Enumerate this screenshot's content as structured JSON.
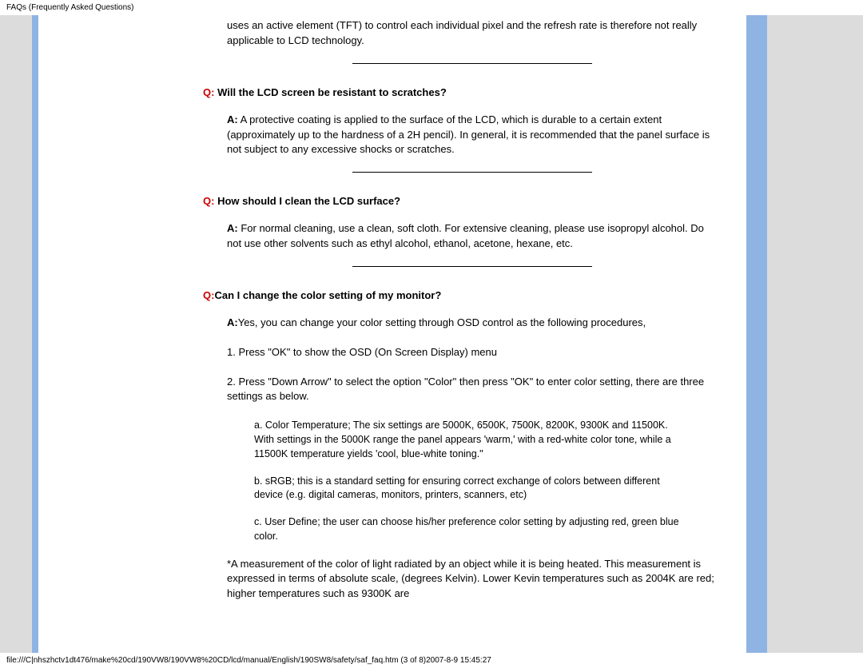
{
  "header": {
    "title": "FAQs (Frequently Asked Questions)"
  },
  "intro": {
    "text": "uses an active element (TFT) to control each individual pixel and the refresh rate is therefore not really applicable to LCD technology."
  },
  "faq1": {
    "q_prefix": "Q:",
    "q_text": " Will the LCD screen be resistant to scratches?",
    "a_prefix": "A:",
    "a_text": " A protective coating is applied to the surface of the LCD, which is durable to a certain extent (approximately up to the hardness of a 2H pencil). In general, it is recommended that the panel surface is not subject to any excessive shocks or scratches."
  },
  "faq2": {
    "q_prefix": "Q:",
    "q_text": " How should I clean the LCD surface?",
    "a_prefix": "A:",
    "a_text": " For normal cleaning, use a clean, soft cloth. For extensive cleaning, please use isopropyl alcohol. Do not use other solvents such as ethyl alcohol, ethanol, acetone, hexane, etc."
  },
  "faq3": {
    "q_prefix": "Q:",
    "q_text": "Can I change the color setting of my monitor?",
    "a_prefix": "A:",
    "a_text": "Yes, you can change your color setting through OSD control as the following procedures,",
    "step1": "1. Press \"OK\" to show the OSD (On Screen Display) menu",
    "step2": "2. Press \"Down Arrow\" to select the option \"Color\" then press \"OK\" to enter color setting, there are three settings as below.",
    "opt_a": "a. Color Temperature; The six settings are  5000K, 6500K, 7500K, 8200K, 9300K and 11500K. With settings in the 5000K range the panel appears 'warm,' with a red-white color tone, while a 11500K temperature yields 'cool, blue-white toning.\"",
    "opt_b": "b. sRGB; this is a standard setting for ensuring correct exchange of colors between different device (e.g. digital cameras, monitors, printers, scanners, etc)",
    "opt_c": "c. User Define; the user can choose his/her preference color setting by adjusting red, green blue color.",
    "note": "*A measurement of the color of light radiated by an object while it is being heated. This measurement is expressed in terms of absolute scale, (degrees Kelvin). Lower Kevin temperatures such as 2004K are red; higher temperatures such as 9300K are"
  },
  "footer": {
    "path": "file:///C|nhszhctv1dt476/make%20cd/190VW8/190VW8%20CD/lcd/manual/English/190SW8/safety/saf_faq.htm (3 of 8)2007-8-9 15:45:27"
  }
}
